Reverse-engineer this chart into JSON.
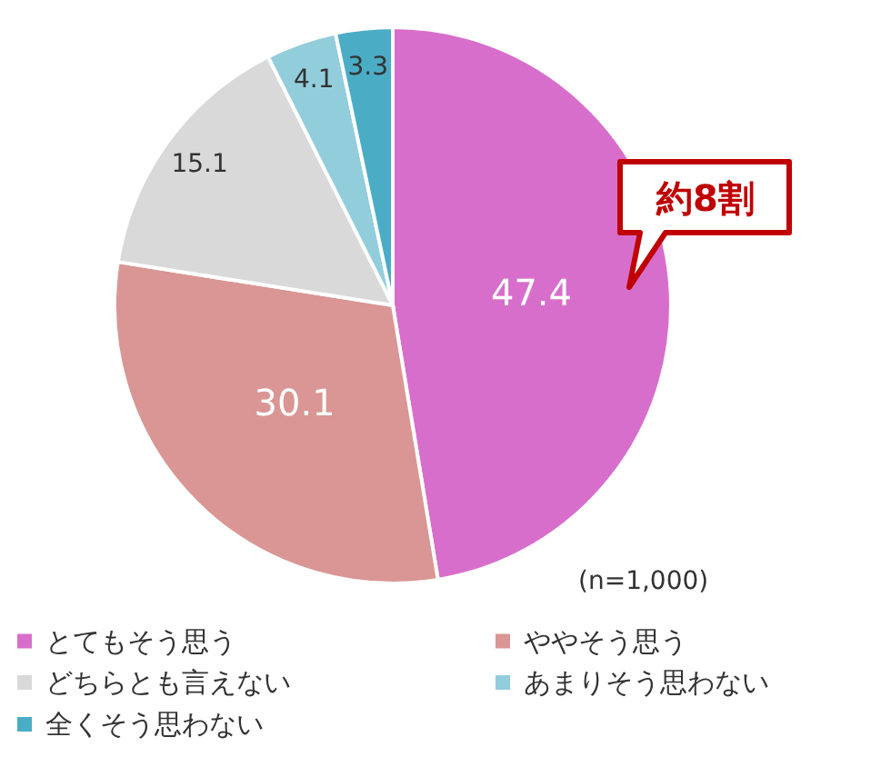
{
  "chart_data": {
    "type": "pie",
    "categories": [
      "とてもそう思う",
      "ややそう思う",
      "どちらとも言えない",
      "あまりそう思わない",
      "全くそう思わない"
    ],
    "values": [
      47.4,
      30.1,
      15.1,
      4.1,
      3.3
    ],
    "colors": [
      "#d86ecc",
      "#d99694",
      "#d9d9d9",
      "#92cddc",
      "#4bacc6"
    ],
    "data_labels": true,
    "legend": "bottom",
    "annotations": [
      "約8割",
      "(n=1,000)"
    ]
  }
}
